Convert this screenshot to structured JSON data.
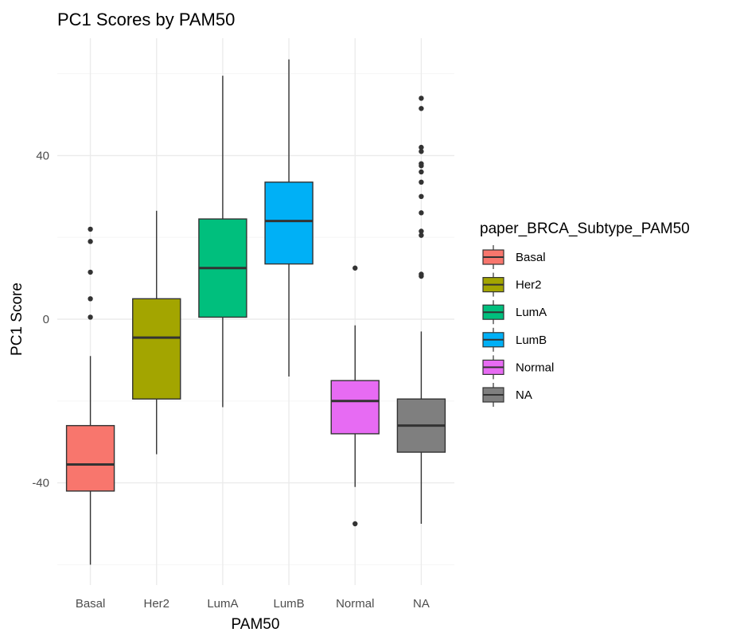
{
  "chart_data": {
    "type": "boxplot",
    "title": "PC1 Scores by PAM50",
    "xlabel": "PAM50",
    "ylabel": "PC1 Score",
    "categories": [
      "Basal",
      "Her2",
      "LumA",
      "LumB",
      "Normal",
      "NA"
    ],
    "ylim": [
      -65,
      63
    ],
    "yticks": [
      -40,
      0,
      40
    ],
    "grid": true,
    "legend": {
      "title": "paper_BRCA_Subtype_PAM50",
      "position": "right",
      "entries": [
        "Basal",
        "Her2",
        "LumA",
        "LumB",
        "Normal",
        "NA"
      ]
    },
    "colors": {
      "Basal": "#F8766D",
      "Her2": "#A3A500",
      "LumA": "#00BF7D",
      "LumB": "#00B0F6",
      "Normal": "#E76BF3",
      "NA": "#7F7F7F"
    },
    "series": [
      {
        "category": "Basal",
        "whisker_low": -60,
        "q1": -42,
        "median": -35.5,
        "q3": -26,
        "whisker_high": -9,
        "outliers": [
          0.5,
          5,
          11.5,
          19,
          22
        ]
      },
      {
        "category": "Her2",
        "whisker_low": -33,
        "q1": -19.5,
        "median": -4.5,
        "q3": 5,
        "whisker_high": 26.5,
        "outliers": []
      },
      {
        "category": "LumA",
        "whisker_low": -21.5,
        "q1": 0.5,
        "median": 12.5,
        "q3": 24.5,
        "whisker_high": 59.5,
        "outliers": []
      },
      {
        "category": "LumB",
        "whisker_low": -14,
        "q1": 13.5,
        "median": 24,
        "q3": 33.5,
        "whisker_high": 63.5,
        "outliers": []
      },
      {
        "category": "Normal",
        "whisker_low": -41,
        "q1": -28,
        "median": -20,
        "q3": -15,
        "whisker_high": -1.5,
        "outliers": [
          -50,
          12.5
        ]
      },
      {
        "category": "NA",
        "whisker_low": -50,
        "q1": -32.5,
        "median": -26,
        "q3": -19.5,
        "whisker_high": -3,
        "outliers": [
          10.5,
          11,
          20.5,
          21.5,
          26,
          30,
          33.5,
          36,
          37.5,
          38,
          41,
          42,
          51.5,
          54
        ]
      }
    ]
  }
}
